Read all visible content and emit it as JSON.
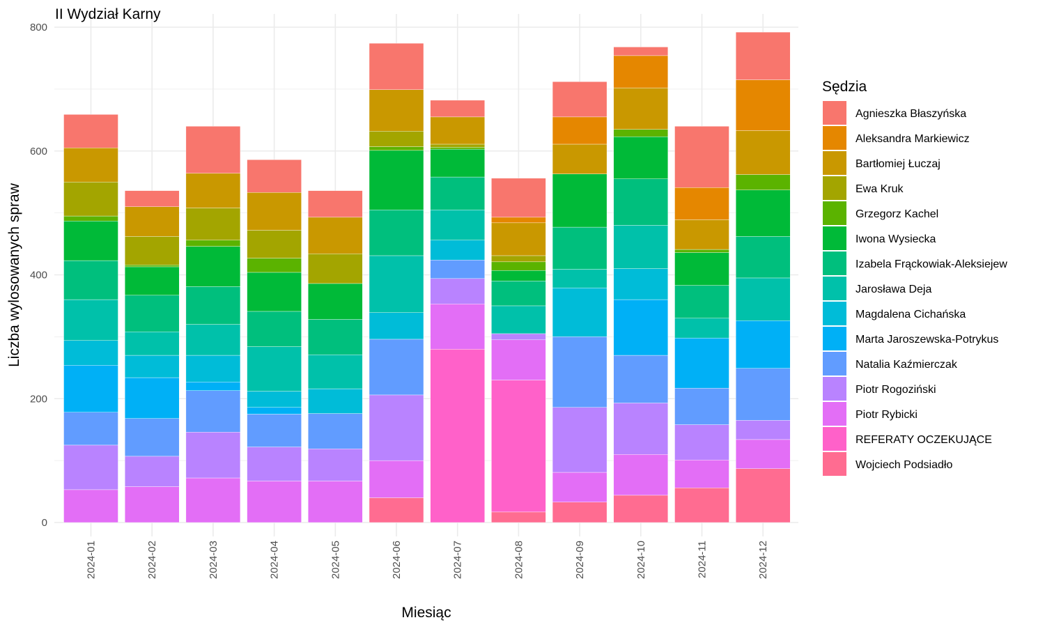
{
  "chart_data": {
    "type": "bar",
    "stacked": true,
    "title": "II Wydział Karny",
    "xlabel": "Miesiąc",
    "ylabel": "Liczba wylosowanych spraw",
    "ylim": [
      0,
      800
    ],
    "yticks": [
      0,
      200,
      400,
      600,
      800
    ],
    "grid": true,
    "legend_title": "Sędzia",
    "legend_position": "right",
    "categories": [
      "2024-01",
      "2024-02",
      "2024-03",
      "2024-04",
      "2024-05",
      "2024-06",
      "2024-07",
      "2024-08",
      "2024-09",
      "2024-10",
      "2024-11",
      "2024-12"
    ],
    "series": [
      {
        "name": "Wojciech Podsiadło",
        "color": "#FF6C91",
        "values": [
          0,
          0,
          0,
          0,
          0,
          40,
          0,
          17,
          33,
          44,
          56,
          87
        ]
      },
      {
        "name": "REFERATY OCZEKUJĄCE",
        "color": "#FF61C9",
        "values": [
          0,
          0,
          0,
          0,
          0,
          0,
          280,
          213,
          0,
          0,
          0,
          0
        ]
      },
      {
        "name": "Piotr Rybicki",
        "color": "#E36EF6",
        "values": [
          53,
          58,
          72,
          67,
          67,
          60,
          73,
          65,
          48,
          66,
          45,
          47
        ]
      },
      {
        "name": "Piotr Rogoziński",
        "color": "#B983FF",
        "values": [
          72,
          49,
          74,
          55,
          52,
          106,
          41,
          10,
          105,
          83,
          57,
          31
        ]
      },
      {
        "name": "Natalia Kaźmierczak",
        "color": "#619CFF",
        "values": [
          53,
          61,
          67,
          53,
          57,
          90,
          30,
          0,
          114,
          77,
          59,
          84
        ]
      },
      {
        "name": "Marta Jaroszewska-Potrykus",
        "color": "#00B0F6",
        "values": [
          76,
          66,
          14,
          11,
          0,
          0,
          0,
          0,
          0,
          90,
          81,
          77
        ]
      },
      {
        "name": "Magdalena Cichańska",
        "color": "#00BCD8",
        "values": [
          40,
          36,
          43,
          26,
          40,
          43,
          32,
          0,
          79,
          50,
          0,
          0
        ]
      },
      {
        "name": "Jarosława Deja",
        "color": "#00C1AA",
        "values": [
          66,
          38,
          50,
          72,
          55,
          92,
          49,
          45,
          30,
          70,
          32,
          69
        ]
      },
      {
        "name": "Izabela Frąckowiak-Aleksiejew",
        "color": "#00BF7D",
        "values": [
          63,
          59,
          61,
          57,
          57,
          74,
          53,
          40,
          68,
          75,
          53,
          67
        ]
      },
      {
        "name": "Iwona Wysiecka",
        "color": "#00BA38",
        "values": [
          64,
          46,
          65,
          63,
          58,
          96,
          45,
          17,
          86,
          68,
          53,
          75
        ]
      },
      {
        "name": "Grzegorz Kachel",
        "color": "#5BB300",
        "values": [
          8,
          3,
          10,
          23,
          0,
          6,
          3,
          14,
          0,
          12,
          5,
          25
        ]
      },
      {
        "name": "Ewa Kruk",
        "color": "#A3A500",
        "values": [
          55,
          46,
          52,
          45,
          48,
          25,
          5,
          10,
          0,
          0,
          0,
          0
        ]
      },
      {
        "name": "Bartłomiej Łuczaj",
        "color": "#C99800",
        "values": [
          55,
          48,
          56,
          61,
          59,
          67,
          44,
          53,
          48,
          67,
          48,
          71
        ]
      },
      {
        "name": "Aleksandra Markiewicz",
        "color": "#E58700",
        "values": [
          0,
          0,
          0,
          0,
          0,
          0,
          0,
          9,
          44,
          52,
          52,
          82
        ]
      },
      {
        "name": "Agnieszka Błaszyńska",
        "color": "#F8766D",
        "values": [
          54,
          26,
          76,
          53,
          43,
          75,
          27,
          63,
          57,
          14,
          99,
          77
        ]
      }
    ]
  }
}
